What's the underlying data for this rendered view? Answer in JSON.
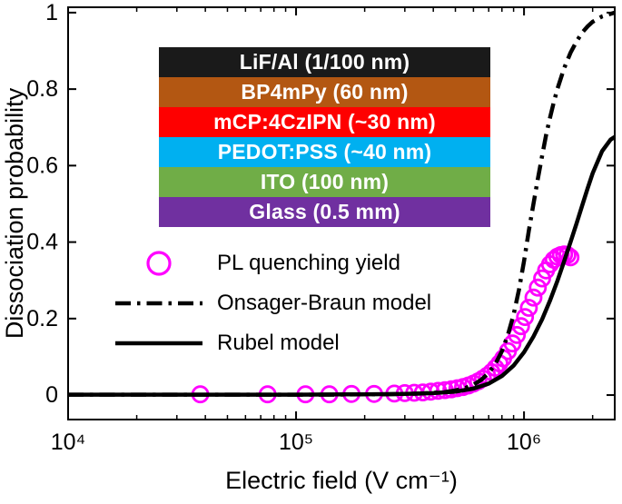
{
  "figure": {
    "background": "#ffffff",
    "axis_color": "#000000"
  },
  "chart_data": {
    "type": "line+scatter",
    "title": "",
    "xlabel": "Electric field (V cm⁻¹)",
    "ylabel": "Dissociation probability",
    "x_scale": "log",
    "grid": "off",
    "legend_position": "inside-left-middle",
    "xlim": [
      10000.0,
      2500000.0
    ],
    "ylim": [
      -0.064,
      1.014
    ],
    "x_ticks": [
      {
        "v": 10000.0,
        "label": "10⁴"
      },
      {
        "v": 100000.0,
        "label": "10⁵"
      },
      {
        "v": 1000000.0,
        "label": "10⁶"
      }
    ],
    "y_ticks": [
      {
        "v": 0,
        "label": "0"
      },
      {
        "v": 0.2,
        "label": "0.2"
      },
      {
        "v": 0.4,
        "label": "0.4"
      },
      {
        "v": 0.6,
        "label": "0.6"
      },
      {
        "v": 0.8,
        "label": "0.8"
      },
      {
        "v": 1,
        "label": "1"
      }
    ],
    "series": [
      {
        "name": "PL quenching yield",
        "type": "scatter",
        "marker": "open-circle",
        "color": "#ff00ff",
        "points": [
          [
            38000.0,
            0.002
          ],
          [
            75000.0,
            0.002
          ],
          [
            110000.0,
            0.002
          ],
          [
            140000.0,
            0.002
          ],
          [
            175000.0,
            0.003
          ],
          [
            220000.0,
            0.003
          ],
          [
            270000.0,
            0.004
          ],
          [
            300000.0,
            0.005
          ],
          [
            330000.0,
            0.006
          ],
          [
            360000.0,
            0.007
          ],
          [
            390000.0,
            0.009
          ],
          [
            420000.0,
            0.011
          ],
          [
            450000.0,
            0.013
          ],
          [
            480000.0,
            0.015
          ],
          [
            510000.0,
            0.018
          ],
          [
            540000.0,
            0.021
          ],
          [
            570000.0,
            0.025
          ],
          [
            600000.0,
            0.03
          ],
          [
            630000.0,
            0.036
          ],
          [
            660000.0,
            0.043
          ],
          [
            690000.0,
            0.051
          ],
          [
            720000.0,
            0.06
          ],
          [
            750000.0,
            0.071
          ],
          [
            780000.0,
            0.083
          ],
          [
            810000.0,
            0.096
          ],
          [
            850000.0,
            0.115
          ],
          [
            890000.0,
            0.135
          ],
          [
            930000.0,
            0.157
          ],
          [
            970000.0,
            0.18
          ],
          [
            1010000.0,
            0.204
          ],
          [
            1050000.0,
            0.228
          ],
          [
            1100000.0,
            0.255
          ],
          [
            1150000.0,
            0.281
          ],
          [
            1200000.0,
            0.305
          ],
          [
            1250000.0,
            0.326
          ],
          [
            1300000.0,
            0.342
          ],
          [
            1350000.0,
            0.354
          ],
          [
            1400000.0,
            0.362
          ],
          [
            1450000.0,
            0.366
          ],
          [
            1500000.0,
            0.368
          ],
          [
            1550000.0,
            0.366
          ],
          [
            1600000.0,
            0.36
          ]
        ]
      },
      {
        "name": "Onsager-Braun model",
        "type": "line",
        "style": "dash-dot",
        "color": "#000000",
        "points": [
          [
            10000.0,
            0.001
          ],
          [
            30000.0,
            0.001
          ],
          [
            100000.0,
            0.001
          ],
          [
            150000.0,
            0.001
          ],
          [
            200000.0,
            0.002
          ],
          [
            250000.0,
            0.002
          ],
          [
            300000.0,
            0.003
          ],
          [
            350000.0,
            0.004
          ],
          [
            400000.0,
            0.006
          ],
          [
            450000.0,
            0.008
          ],
          [
            500000.0,
            0.012
          ],
          [
            550000.0,
            0.018
          ],
          [
            600000.0,
            0.027
          ],
          [
            650000.0,
            0.04
          ],
          [
            700000.0,
            0.058
          ],
          [
            750000.0,
            0.082
          ],
          [
            800000.0,
            0.115
          ],
          [
            850000.0,
            0.158
          ],
          [
            900000.0,
            0.21
          ],
          [
            950000.0,
            0.275
          ],
          [
            1000000.0,
            0.35
          ],
          [
            1050000.0,
            0.43
          ],
          [
            1100000.0,
            0.5
          ],
          [
            1150000.0,
            0.565
          ],
          [
            1200000.0,
            0.625
          ],
          [
            1250000.0,
            0.68
          ],
          [
            1300000.0,
            0.725
          ],
          [
            1350000.0,
            0.765
          ],
          [
            1400000.0,
            0.8
          ],
          [
            1500000.0,
            0.855
          ],
          [
            1600000.0,
            0.895
          ],
          [
            1700000.0,
            0.925
          ],
          [
            1800000.0,
            0.948
          ],
          [
            1900000.0,
            0.964
          ],
          [
            2000000.0,
            0.976
          ],
          [
            2200000.0,
            0.99
          ],
          [
            2500000.0,
            1.0
          ]
        ]
      },
      {
        "name": "Rubel model",
        "type": "line",
        "style": "solid",
        "color": "#000000",
        "points": [
          [
            10000.0,
            0.001
          ],
          [
            100000.0,
            0.001
          ],
          [
            200000.0,
            0.002
          ],
          [
            300000.0,
            0.003
          ],
          [
            400000.0,
            0.005
          ],
          [
            500000.0,
            0.009
          ],
          [
            600000.0,
            0.017
          ],
          [
            700000.0,
            0.03
          ],
          [
            800000.0,
            0.05
          ],
          [
            900000.0,
            0.077
          ],
          [
            1000000.0,
            0.112
          ],
          [
            1100000.0,
            0.153
          ],
          [
            1200000.0,
            0.198
          ],
          [
            1300000.0,
            0.247
          ],
          [
            1400000.0,
            0.298
          ],
          [
            1500000.0,
            0.35
          ],
          [
            1600000.0,
            0.4
          ],
          [
            1700000.0,
            0.449
          ],
          [
            1800000.0,
            0.496
          ],
          [
            1900000.0,
            0.54
          ],
          [
            2000000.0,
            0.58
          ],
          [
            2200000.0,
            0.638
          ],
          [
            2400000.0,
            0.668
          ],
          [
            2500000.0,
            0.675
          ]
        ]
      }
    ]
  },
  "inset": {
    "layers": [
      {
        "label": "LiF/Al (1/100 nm)",
        "color": "#1a1a1a"
      },
      {
        "label": "BP4mPy (60 nm)",
        "color": "#b35712"
      },
      {
        "label": "mCP:4CzIPN (~30 nm)",
        "color": "#fe0000"
      },
      {
        "label": "PEDOT:PSS (~40 nm)",
        "color": "#00b0f0"
      },
      {
        "label": "ITO (100 nm)",
        "color": "#70ad47"
      },
      {
        "label": "Glass (0.5 mm)",
        "color": "#7030a0"
      }
    ]
  }
}
